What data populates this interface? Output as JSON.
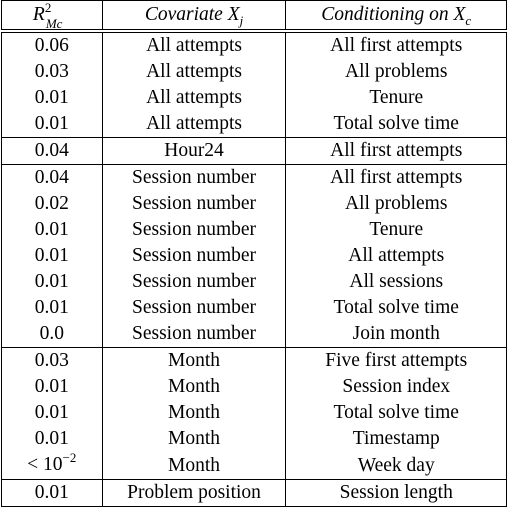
{
  "table": {
    "header": {
      "r2_base": "R",
      "r2_sup": "2",
      "r2_sub": "Mc",
      "covariate_text": "Covariate ",
      "covariate_sym": "X",
      "covariate_sub": "j",
      "conditioning_text": "Conditioning on ",
      "conditioning_sym": "X",
      "conditioning_sub": "c"
    },
    "rows": [
      {
        "r2": "0.06",
        "covariate": "All attempts",
        "conditioning": "All first attempts"
      },
      {
        "r2": "0.03",
        "covariate": "All attempts",
        "conditioning": "All problems"
      },
      {
        "r2": "0.01",
        "covariate": "All attempts",
        "conditioning": "Tenure"
      },
      {
        "r2": "0.01",
        "covariate": "All attempts",
        "conditioning": "Total solve time"
      },
      {
        "r2": "0.04",
        "covariate": "Hour24",
        "conditioning": "All first attempts"
      },
      {
        "r2": "0.04",
        "covariate": "Session number",
        "conditioning": "All first attempts"
      },
      {
        "r2": "0.02",
        "covariate": "Session number",
        "conditioning": "All problems"
      },
      {
        "r2": "0.01",
        "covariate": "Session number",
        "conditioning": "Tenure"
      },
      {
        "r2": "0.01",
        "covariate": "Session number",
        "conditioning": "All attempts"
      },
      {
        "r2": "0.01",
        "covariate": "Session number",
        "conditioning": "All sessions"
      },
      {
        "r2": "0.01",
        "covariate": "Session number",
        "conditioning": "Total solve time"
      },
      {
        "r2": "0.0",
        "covariate": "Session number",
        "conditioning": "Join month"
      },
      {
        "r2": "0.03",
        "covariate": "Month",
        "conditioning": "Five first attempts"
      },
      {
        "r2": "0.01",
        "covariate": "Month",
        "conditioning": "Session index"
      },
      {
        "r2": "0.01",
        "covariate": "Month",
        "conditioning": "Total solve time"
      },
      {
        "r2": "0.01",
        "covariate": "Month",
        "conditioning": "Timestamp"
      },
      {
        "r2_lt": "< 10",
        "r2_exp": "−2",
        "covariate": "Month",
        "conditioning": "Week day"
      },
      {
        "r2": "0.01",
        "covariate": "Problem position",
        "conditioning": "Session length"
      }
    ]
  }
}
